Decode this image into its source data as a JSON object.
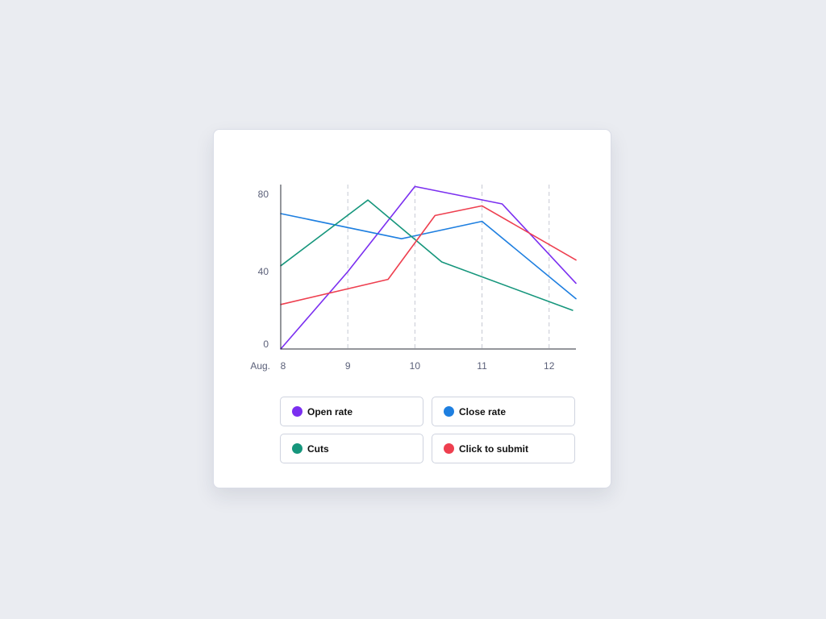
{
  "chart_data": {
    "type": "line",
    "x_prefix": "Aug.",
    "x": [
      8,
      9,
      10,
      11,
      12
    ],
    "x_tick_labels": [
      "8",
      "9",
      "10",
      "11",
      "12"
    ],
    "xlim": [
      8,
      12.4
    ],
    "ylim": [
      0,
      85
    ],
    "y_ticks": [
      0,
      40,
      80
    ],
    "y_tick_labels": [
      "0",
      "40",
      "80"
    ],
    "grid": "vertical-dashed",
    "legend_position": "bottom",
    "series": [
      {
        "name": "Open rate",
        "color": "#7b2ff0",
        "points": [
          [
            8,
            0
          ],
          [
            9,
            40
          ],
          [
            10,
            84
          ],
          [
            11.3,
            75
          ],
          [
            12.4,
            34
          ]
        ]
      },
      {
        "name": "Close rate",
        "color": "#1e7fe0",
        "points": [
          [
            8,
            70
          ],
          [
            9.8,
            57
          ],
          [
            11,
            66
          ],
          [
            12.4,
            26
          ]
        ]
      },
      {
        "name": "Cuts",
        "color": "#16967c",
        "points": [
          [
            8,
            43
          ],
          [
            9.3,
            77
          ],
          [
            10.4,
            45
          ],
          [
            12.35,
            20
          ]
        ]
      },
      {
        "name": "Click to submit",
        "color": "#ee3f4f",
        "points": [
          [
            8,
            23
          ],
          [
            9.6,
            36
          ],
          [
            10.3,
            69
          ],
          [
            11,
            74
          ],
          [
            12.4,
            46
          ]
        ]
      }
    ]
  },
  "legend": {
    "items": [
      {
        "label": "Open rate",
        "color": "#7b2ff0"
      },
      {
        "label": "Close rate",
        "color": "#1e7fe0"
      },
      {
        "label": "Cuts",
        "color": "#16967c"
      },
      {
        "label": "Click to submit",
        "color": "#ee3f4f"
      }
    ]
  }
}
